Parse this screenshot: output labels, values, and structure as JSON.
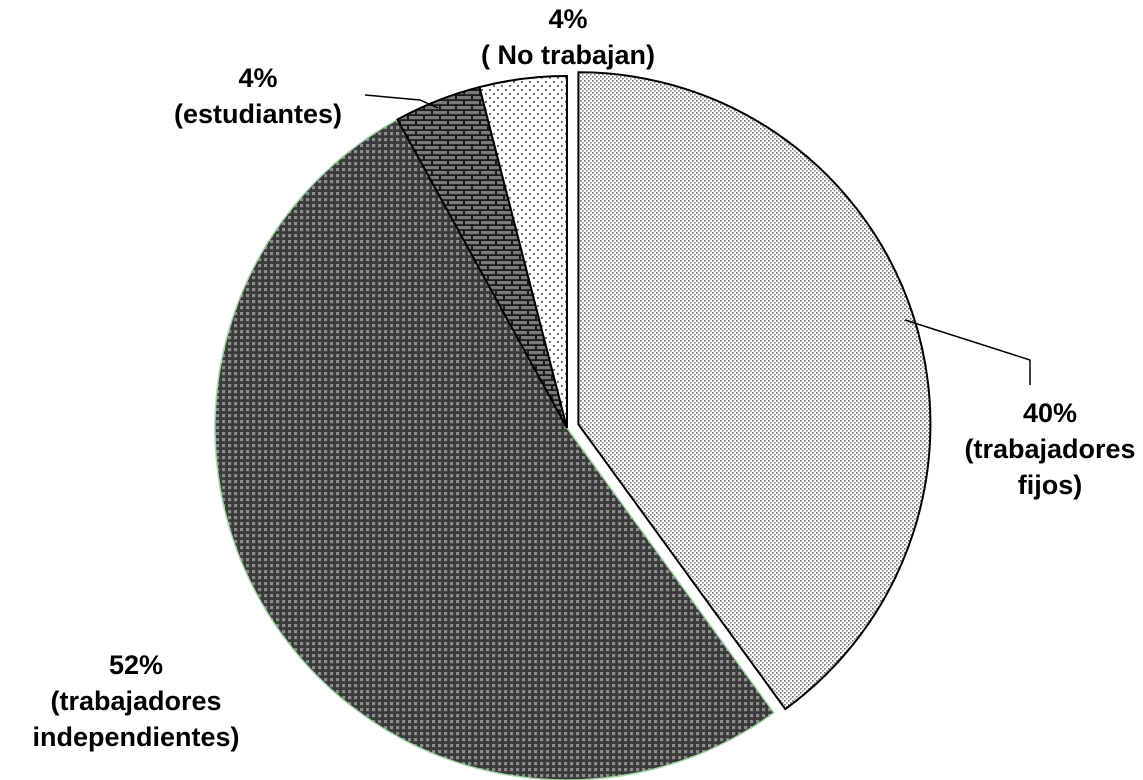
{
  "chart_data": {
    "type": "pie",
    "start_angle_deg": 0,
    "direction": "clockwise",
    "slices": [
      {
        "percent_label": "40%",
        "category_label": [
          "(trabajadores",
          "fijos)"
        ],
        "value": 40,
        "pattern": "light-dots",
        "exploded": true
      },
      {
        "percent_label": "52%",
        "category_label": [
          "(trabajadores",
          "independientes)"
        ],
        "value": 52,
        "pattern": "dark-grid",
        "exploded": false
      },
      {
        "percent_label": "4%",
        "category_label": [
          "(estudiantes)"
        ],
        "value": 4,
        "pattern": "brick",
        "exploded": false
      },
      {
        "percent_label": "4%",
        "category_label": [
          "( No trabajan)"
        ],
        "value": 4,
        "pattern": "sparse-dots",
        "exploded": false
      }
    ]
  }
}
